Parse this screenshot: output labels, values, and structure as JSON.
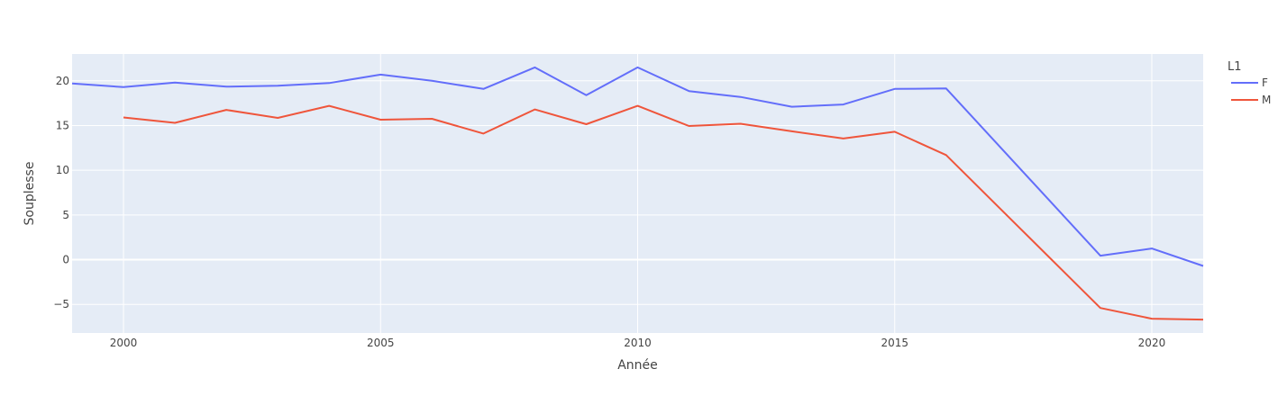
{
  "chart_data": {
    "type": "line",
    "title": "",
    "xlabel": "Année",
    "ylabel": "Souplesse",
    "xlim": [
      1999,
      2021
    ],
    "ylim": [
      -8.2,
      23
    ],
    "x_ticks": [
      2000,
      2005,
      2010,
      2015,
      2020
    ],
    "y_ticks": [
      -5,
      0,
      5,
      10,
      15,
      20
    ],
    "y_tick_labels": [
      "−5",
      "0",
      "5",
      "10",
      "15",
      "20"
    ],
    "grid": true,
    "legend": {
      "title": "L1",
      "position": "right"
    },
    "series": [
      {
        "name": "F",
        "color": "#636efa",
        "points": [
          [
            1999,
            19.7
          ],
          [
            2000,
            19.3
          ],
          [
            2001,
            19.8
          ],
          [
            2002,
            19.35
          ],
          [
            2003,
            19.45
          ],
          [
            2004,
            19.75
          ],
          [
            2005,
            20.7
          ],
          [
            2006,
            20.0
          ],
          [
            2007,
            19.1
          ],
          [
            2008,
            21.5
          ],
          [
            2009,
            18.4
          ],
          [
            2010,
            21.5
          ],
          [
            2011,
            18.85
          ],
          [
            2012,
            18.2
          ],
          [
            2013,
            17.1
          ],
          [
            2014,
            17.35
          ],
          [
            2015,
            19.1
          ],
          [
            2016,
            19.15
          ],
          [
            2019,
            0.45
          ],
          [
            2020,
            1.25
          ],
          [
            2021,
            -0.7
          ]
        ]
      },
      {
        "name": "M",
        "color": "#ef553b",
        "points": [
          [
            2000,
            15.9
          ],
          [
            2001,
            15.3
          ],
          [
            2002,
            16.75
          ],
          [
            2003,
            15.85
          ],
          [
            2004,
            17.2
          ],
          [
            2005,
            15.65
          ],
          [
            2006,
            15.75
          ],
          [
            2007,
            14.1
          ],
          [
            2008,
            16.8
          ],
          [
            2009,
            15.15
          ],
          [
            2010,
            17.2
          ],
          [
            2011,
            14.95
          ],
          [
            2012,
            15.2
          ],
          [
            2013,
            14.35
          ],
          [
            2014,
            13.55
          ],
          [
            2015,
            14.3
          ],
          [
            2016,
            11.7
          ],
          [
            2019,
            -5.4
          ],
          [
            2020,
            -6.6
          ],
          [
            2021,
            -6.7
          ]
        ]
      }
    ]
  }
}
